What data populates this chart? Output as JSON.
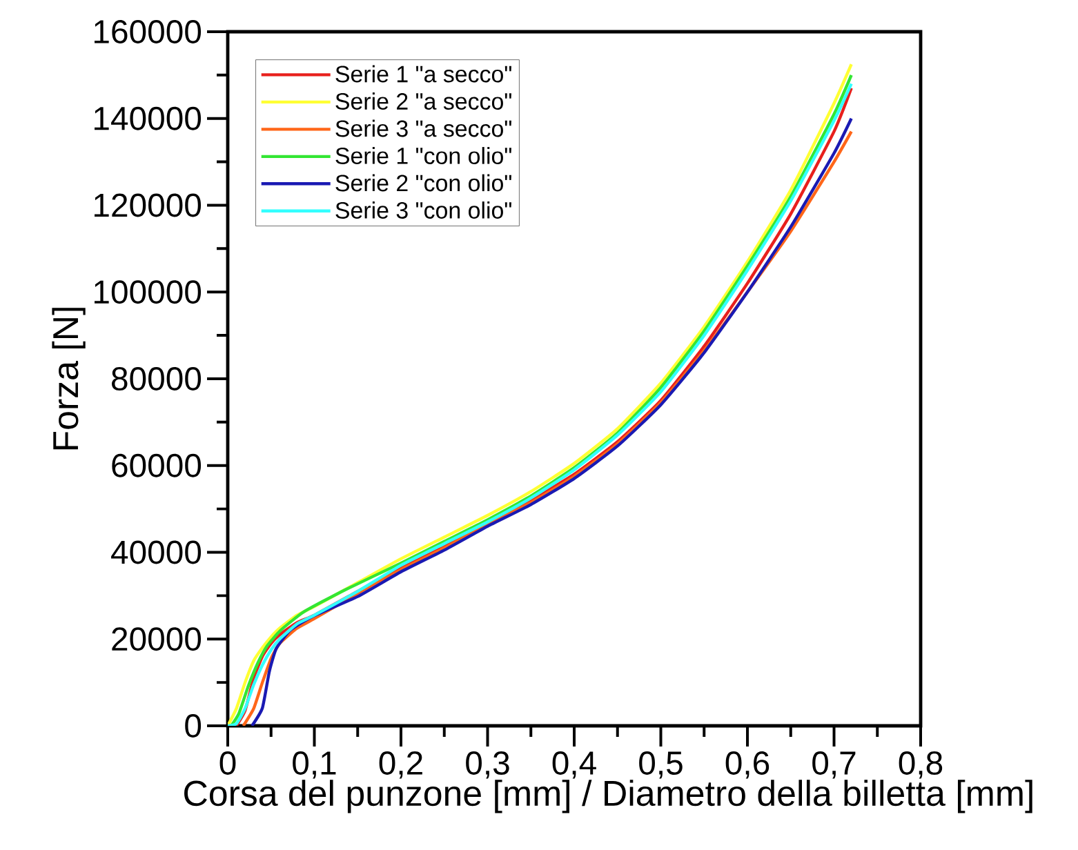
{
  "chart_data": {
    "type": "line",
    "xlabel": "Corsa del punzone [mm] / Diametro della billetta [mm]",
    "ylabel": "Forza [N]",
    "xlim": [
      0,
      0.8
    ],
    "ylim": [
      0,
      160000
    ],
    "xticks": [
      0,
      {
        "value": 0.1,
        "label": "0,1"
      },
      {
        "value": 0.2,
        "label": "0,2"
      },
      {
        "value": 0.3,
        "label": "0,3"
      },
      {
        "value": 0.4,
        "label": "0,4"
      },
      {
        "value": 0.5,
        "label": "0,5"
      },
      {
        "value": 0.6,
        "label": "0,6"
      },
      {
        "value": 0.7,
        "label": "0,7"
      },
      {
        "value": 0.8,
        "label": "0,8"
      }
    ],
    "yticks": [
      0,
      20000,
      40000,
      60000,
      80000,
      100000,
      120000,
      140000,
      160000
    ],
    "legend": "top left",
    "grid": false,
    "line_style": "solid",
    "series": [
      {
        "name": "Serie 1 \"a secco\"",
        "color": "#e8201c",
        "x": [
          0.01,
          0.02,
          0.03,
          0.04,
          0.05,
          0.06,
          0.08,
          0.1,
          0.15,
          0.2,
          0.25,
          0.3,
          0.35,
          0.4,
          0.45,
          0.5,
          0.55,
          0.6,
          0.65,
          0.7,
          0.72
        ],
        "values": [
          0,
          3500,
          11000,
          16000,
          19000,
          21000,
          23800,
          25500,
          31000,
          36500,
          41500,
          47000,
          52000,
          58000,
          65500,
          75000,
          87500,
          102000,
          118000,
          137000,
          147000
        ]
      },
      {
        "name": "Serie 2 \"a secco\"",
        "color": "#ffff33",
        "x": [
          0,
          0.01,
          0.02,
          0.03,
          0.04,
          0.05,
          0.06,
          0.08,
          0.1,
          0.15,
          0.2,
          0.25,
          0.3,
          0.35,
          0.4,
          0.45,
          0.5,
          0.55,
          0.6,
          0.65,
          0.7,
          0.72
        ],
        "values": [
          0,
          4000,
          10000,
          15000,
          18000,
          20500,
          22500,
          25500,
          27500,
          33000,
          38500,
          43500,
          48500,
          54000,
          60500,
          68500,
          79000,
          92000,
          107000,
          123500,
          143500,
          152500
        ]
      },
      {
        "name": "Serie 3 \"a secco\"",
        "color": "#ff6619",
        "x": [
          0.018,
          0.03,
          0.04,
          0.05,
          0.06,
          0.08,
          0.1,
          0.15,
          0.2,
          0.25,
          0.3,
          0.35,
          0.4,
          0.45,
          0.5,
          0.55,
          0.6,
          0.65,
          0.7,
          0.72
        ],
        "values": [
          0,
          4000,
          10000,
          15500,
          19000,
          22500,
          24700,
          30500,
          36000,
          41000,
          46500,
          51500,
          57500,
          65000,
          74500,
          86500,
          100000,
          114000,
          130000,
          137000
        ]
      },
      {
        "name": "Serie 1 \"con olio\"",
        "color": "#33e633",
        "x": [
          0.004,
          0.013,
          0.024,
          0.035,
          0.045,
          0.061,
          0.088,
          0.135,
          0.2,
          0.25,
          0.3,
          0.35,
          0.4,
          0.45,
          0.5,
          0.55,
          0.6,
          0.65,
          0.7,
          0.72
        ],
        "values": [
          0,
          2900,
          9300,
          14600,
          18300,
          22000,
          26300,
          31300,
          37500,
          42500,
          47500,
          53000,
          59500,
          67500,
          78000,
          91000,
          106000,
          122000,
          141000,
          150000
        ]
      },
      {
        "name": "Serie 2 \"con olio\"",
        "color": "#1a1ab3",
        "x": [
          0.028,
          0.04,
          0.048,
          0.056,
          0.072,
          0.098,
          0.15,
          0.2,
          0.25,
          0.3,
          0.35,
          0.4,
          0.45,
          0.5,
          0.55,
          0.6,
          0.65,
          0.7,
          0.72
        ],
        "values": [
          0,
          4100,
          12500,
          17800,
          22000,
          25200,
          29800,
          35500,
          40500,
          46000,
          51000,
          57000,
          64500,
          74000,
          86000,
          100000,
          115000,
          132000,
          140000
        ]
      },
      {
        "name": "Serie 3 \"con olio\"",
        "color": "#33ffff",
        "x": [
          0,
          0.01,
          0.02,
          0.03,
          0.04,
          0.05,
          0.06,
          0.08,
          0.1,
          0.15,
          0.2,
          0.25,
          0.3,
          0.35,
          0.4,
          0.45,
          0.5,
          0.55,
          0.6,
          0.65,
          0.7,
          0.72
        ],
        "values": [
          0,
          500,
          4000,
          9500,
          14000,
          17500,
          20000,
          23500,
          25500,
          31000,
          37000,
          42000,
          47000,
          52500,
          59000,
          67000,
          77000,
          90000,
          105000,
          121000,
          139500,
          148000
        ]
      }
    ]
  }
}
